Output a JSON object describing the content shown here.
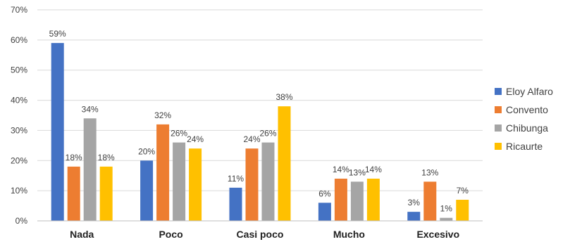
{
  "chart_data": {
    "type": "bar",
    "title": "",
    "xlabel": "",
    "ylabel": "",
    "ylim": [
      0,
      70
    ],
    "y_ticks": [
      0,
      10,
      20,
      30,
      40,
      50,
      60,
      70
    ],
    "y_tick_labels": [
      "0%",
      "10%",
      "20%",
      "30%",
      "40%",
      "50%",
      "60%",
      "70%"
    ],
    "grid": true,
    "legend_position": "right",
    "categories": [
      "Nada",
      "Poco",
      "Casi poco",
      "Mucho",
      "Excesivo"
    ],
    "series": [
      {
        "name": "Eloy Alfaro",
        "color": "#4472c4",
        "values": [
          59,
          20,
          11,
          6,
          3
        ],
        "labels": [
          "59%",
          "20%",
          "11%",
          "6%",
          "3%"
        ]
      },
      {
        "name": "Convento",
        "color": "#ed7d31",
        "values": [
          18,
          32,
          24,
          14,
          13
        ],
        "labels": [
          "18%",
          "32%",
          "24%",
          "14%",
          "13%"
        ]
      },
      {
        "name": "Chibunga",
        "color": "#a5a5a5",
        "values": [
          34,
          26,
          26,
          13,
          1
        ],
        "labels": [
          "34%",
          "26%",
          "26%",
          "13%",
          "1%"
        ]
      },
      {
        "name": "Ricaurte",
        "color": "#ffc000",
        "values": [
          18,
          24,
          38,
          14,
          7
        ],
        "labels": [
          "18%",
          "24%",
          "38%",
          "14%",
          "7%"
        ]
      }
    ]
  }
}
